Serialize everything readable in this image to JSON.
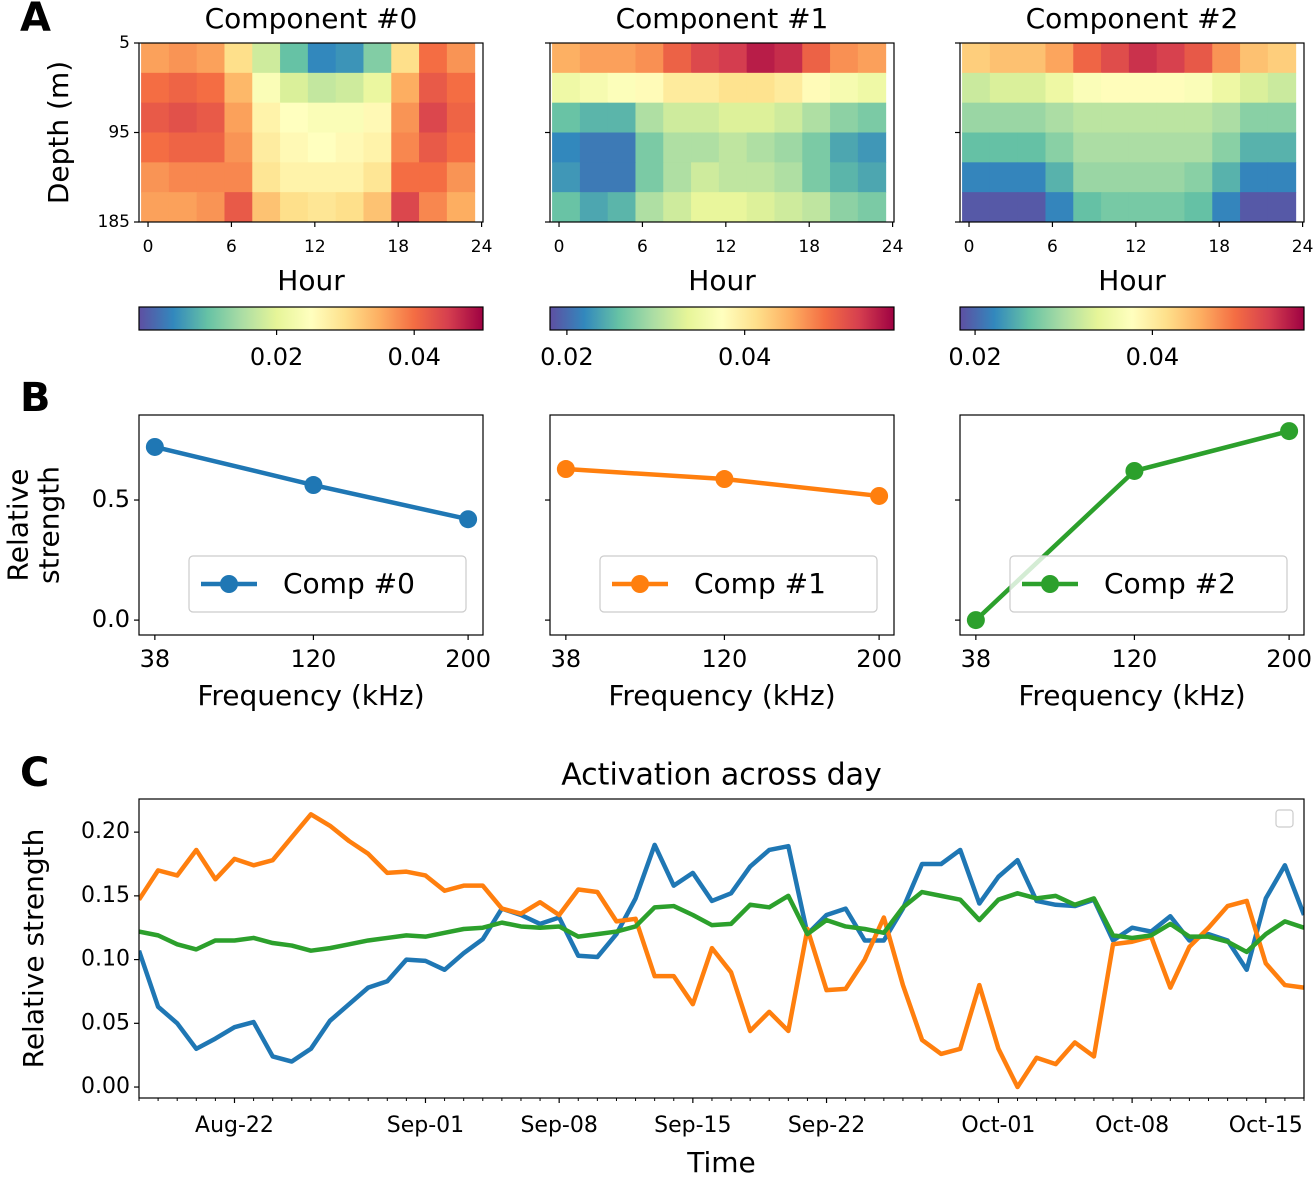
{
  "chart_data": [
    {
      "type": "heatmap",
      "panel": "A",
      "title": "Component #0",
      "xlabel": "Hour",
      "ylabel": [
        "Depth (m)"
      ],
      "x_edges": [
        -0.5,
        1.5,
        3.5,
        5.5,
        7.5,
        9.5,
        11.5,
        13.5,
        15.5,
        17.5,
        19.5,
        21.5,
        23.5
      ],
      "y_edges": [
        5,
        35,
        65,
        95,
        125,
        155,
        185
      ],
      "values": [
        [
          0.036,
          0.037,
          0.036,
          0.03,
          0.018,
          0.01,
          0.005,
          0.006,
          0.012,
          0.03,
          0.04,
          0.037
        ],
        [
          0.04,
          0.041,
          0.04,
          0.034,
          0.024,
          0.019,
          0.017,
          0.018,
          0.021,
          0.035,
          0.042,
          0.04
        ],
        [
          0.042,
          0.043,
          0.042,
          0.036,
          0.027,
          0.025,
          0.024,
          0.024,
          0.026,
          0.037,
          0.044,
          0.041
        ],
        [
          0.04,
          0.041,
          0.041,
          0.037,
          0.028,
          0.026,
          0.025,
          0.026,
          0.027,
          0.038,
          0.042,
          0.04
        ],
        [
          0.037,
          0.038,
          0.038,
          0.038,
          0.029,
          0.027,
          0.027,
          0.027,
          0.029,
          0.04,
          0.04,
          0.037
        ],
        [
          0.036,
          0.036,
          0.037,
          0.042,
          0.033,
          0.03,
          0.029,
          0.03,
          0.033,
          0.044,
          0.038,
          0.035
        ]
      ],
      "xlim": [
        -0.65,
        24.1
      ],
      "ylim": [
        185,
        5
      ],
      "xticks": [
        0,
        6,
        12,
        18,
        24
      ],
      "yticks": [
        5,
        95,
        185
      ],
      "show_ytick_labels": true,
      "colormap": [
        "#5e4fa2",
        "#3288bd",
        "#66c2a5",
        "#abdda4",
        "#e6f598",
        "#ffffbf",
        "#fee08b",
        "#fdae61",
        "#f46d43",
        "#d53e4f",
        "#9e0142"
      ],
      "clim": [
        0.0,
        0.05
      ],
      "cticks": [
        0.02,
        0.04
      ]
    },
    {
      "type": "heatmap",
      "title": "Component #1",
      "xlabel": "Hour",
      "x_edges": [
        -0.5,
        1.5,
        3.5,
        5.5,
        7.5,
        9.5,
        11.5,
        13.5,
        15.5,
        17.5,
        19.5,
        21.5,
        23.5
      ],
      "y_edges": [
        5,
        35,
        65,
        95,
        125,
        155,
        185
      ],
      "values": [
        [
          0.045,
          0.046,
          0.046,
          0.047,
          0.05,
          0.052,
          0.053,
          0.055,
          0.054,
          0.05,
          0.047,
          0.046
        ],
        [
          0.035,
          0.036,
          0.037,
          0.038,
          0.04,
          0.04,
          0.041,
          0.041,
          0.04,
          0.038,
          0.036,
          0.035
        ],
        [
          0.026,
          0.025,
          0.025,
          0.03,
          0.032,
          0.032,
          0.033,
          0.033,
          0.032,
          0.03,
          0.028,
          0.027
        ],
        [
          0.022,
          0.021,
          0.021,
          0.027,
          0.03,
          0.03,
          0.031,
          0.03,
          0.029,
          0.027,
          0.024,
          0.023
        ],
        [
          0.023,
          0.021,
          0.021,
          0.027,
          0.03,
          0.032,
          0.031,
          0.031,
          0.03,
          0.027,
          0.025,
          0.024
        ],
        [
          0.026,
          0.024,
          0.025,
          0.03,
          0.032,
          0.034,
          0.034,
          0.033,
          0.032,
          0.031,
          0.028,
          0.027
        ]
      ],
      "xlim": [
        -0.65,
        24.1
      ],
      "ylim": [
        185,
        5
      ],
      "xticks": [
        0,
        6,
        12,
        18,
        24
      ],
      "yticks": [
        5,
        95,
        185
      ],
      "show_ytick_labels": false,
      "colormap": [
        "#5e4fa2",
        "#3288bd",
        "#66c2a5",
        "#abdda4",
        "#e6f598",
        "#ffffbf",
        "#fee08b",
        "#fdae61",
        "#f46d43",
        "#d53e4f",
        "#9e0142"
      ],
      "clim": [
        0.0181,
        0.0568
      ],
      "cticks": [
        0.02,
        0.04
      ]
    },
    {
      "type": "heatmap",
      "title": "Component #2",
      "xlabel": "Hour",
      "x_edges": [
        -0.5,
        1.5,
        3.5,
        5.5,
        7.5,
        9.5,
        11.5,
        13.5,
        15.5,
        17.5,
        19.5,
        21.5,
        23.5
      ],
      "y_edges": [
        5,
        35,
        65,
        95,
        125,
        155,
        185
      ],
      "values": [
        [
          0.043,
          0.044,
          0.044,
          0.046,
          0.05,
          0.052,
          0.054,
          0.053,
          0.051,
          0.047,
          0.044,
          0.043
        ],
        [
          0.032,
          0.033,
          0.033,
          0.035,
          0.037,
          0.038,
          0.038,
          0.038,
          0.037,
          0.035,
          0.033,
          0.032
        ],
        [
          0.029,
          0.029,
          0.029,
          0.03,
          0.031,
          0.031,
          0.031,
          0.031,
          0.031,
          0.03,
          0.028,
          0.028
        ],
        [
          0.026,
          0.026,
          0.026,
          0.028,
          0.03,
          0.03,
          0.03,
          0.03,
          0.03,
          0.028,
          0.025,
          0.025
        ],
        [
          0.022,
          0.022,
          0.022,
          0.025,
          0.029,
          0.029,
          0.029,
          0.029,
          0.028,
          0.025,
          0.022,
          0.022
        ],
        [
          0.019,
          0.019,
          0.019,
          0.022,
          0.026,
          0.027,
          0.027,
          0.027,
          0.026,
          0.022,
          0.019,
          0.019
        ]
      ],
      "xlim": [
        -0.65,
        24.1
      ],
      "ylim": [
        185,
        5
      ],
      "xticks": [
        0,
        6,
        12,
        18,
        24
      ],
      "yticks": [
        5,
        95,
        185
      ],
      "show_ytick_labels": false,
      "colormap": [
        "#5e4fa2",
        "#3288bd",
        "#66c2a5",
        "#abdda4",
        "#e6f598",
        "#ffffbf",
        "#fee08b",
        "#fdae61",
        "#f46d43",
        "#d53e4f",
        "#9e0142"
      ],
      "clim": [
        0.0183,
        0.0571
      ],
      "cticks": [
        0.02,
        0.04
      ]
    },
    {
      "type": "line",
      "panel": "B",
      "xlabel": "Frequency (kHz)",
      "ylabel": [
        "Relative",
        "strength"
      ],
      "x": [
        38,
        120,
        200
      ],
      "xlim": [
        29.8,
        207.7
      ],
      "xticks": [
        38,
        120,
        200
      ],
      "ylim": [
        -0.062,
        0.854
      ],
      "yticks": [
        {
          "value": 0,
          "label": "0.0"
        },
        0.5
      ],
      "show_ytick_labels": true,
      "markers": true,
      "legend": "lower right",
      "series": [
        {
          "name": "Comp #0",
          "color": "#1f77b4",
          "values": [
            0.721,
            0.5625,
            0.42
          ]
        }
      ]
    },
    {
      "type": "line",
      "xlabel": "Frequency (kHz)",
      "x": [
        38,
        120,
        200
      ],
      "xlim": [
        29.8,
        207.7
      ],
      "xticks": [
        38,
        120,
        200
      ],
      "ylim": [
        -0.062,
        0.854
      ],
      "yticks": [
        {
          "value": 0,
          "label": "0.0"
        },
        0.5
      ],
      "show_ytick_labels": false,
      "markers": true,
      "legend": "lower right",
      "series": [
        {
          "name": "Comp #1",
          "color": "#ff7f0e",
          "values": [
            0.629,
            0.5875,
            0.517
          ]
        }
      ]
    },
    {
      "type": "line",
      "xlabel": "Frequency (kHz)",
      "x": [
        38,
        120,
        200
      ],
      "xlim": [
        29.8,
        207.7
      ],
      "xticks": [
        38,
        120,
        200
      ],
      "ylim": [
        -0.062,
        0.854
      ],
      "yticks": [
        {
          "value": 0,
          "label": "0.0"
        },
        0.5
      ],
      "show_ytick_labels": false,
      "markers": true,
      "legend": "lower right",
      "series": [
        {
          "name": "Comp #2",
          "color": "#2ca02c",
          "values": [
            0.0,
            0.621,
            0.787
          ]
        }
      ]
    },
    {
      "type": "line",
      "panel": "C",
      "title": "Activation across day",
      "xlabel": "Time",
      "ylabel": [
        "Relative strength"
      ],
      "x": [
        "Aug-17",
        "Aug-18",
        "Aug-19",
        "Aug-20",
        "Aug-21",
        "Aug-22",
        "Aug-23",
        "Aug-24",
        "Aug-25",
        "Aug-26",
        "Aug-27",
        "Aug-28",
        "Aug-29",
        "Aug-30",
        "Aug-31",
        "Sep-01",
        "Sep-02",
        "Sep-03",
        "Sep-04",
        "Sep-05",
        "Sep-06",
        "Sep-07",
        "Sep-08",
        "Sep-09",
        "Sep-10",
        "Sep-11",
        "Sep-12",
        "Sep-13",
        "Sep-14",
        "Sep-15",
        "Sep-16",
        "Sep-17",
        "Sep-18",
        "Sep-19",
        "Sep-20",
        "Sep-21",
        "Sep-22",
        "Sep-23",
        "Sep-24",
        "Sep-25",
        "Sep-26",
        "Sep-27",
        "Sep-28",
        "Sep-29",
        "Sep-30",
        "Oct-01",
        "Oct-02",
        "Oct-03",
        "Oct-04",
        "Oct-05",
        "Oct-06",
        "Oct-07",
        "Oct-08",
        "Oct-09",
        "Oct-10",
        "Oct-11",
        "Oct-12",
        "Oct-13",
        "Oct-14",
        "Oct-15",
        "Oct-16",
        "Oct-17"
      ],
      "xlim": [
        "Aug-17",
        "Oct-17"
      ],
      "xticks": [
        "Aug-22",
        "Sep-01",
        "Sep-08",
        "Sep-15",
        "Sep-22",
        "Oct-01",
        "Oct-08",
        "Oct-15"
      ],
      "ylim": [
        -0.0086,
        0.226
      ],
      "yticks": [
        {
          "value": 0,
          "label": "0.00"
        },
        0.05,
        {
          "value": 0.1,
          "label": "0.10"
        },
        0.15,
        {
          "value": 0.2,
          "label": "0.20"
        }
      ],
      "show_ytick_labels": true,
      "markers": false,
      "legend": "upper right",
      "series": [
        {
          "color": "#1f77b4",
          "values": [
            0.107,
            0.063,
            0.05,
            0.03,
            0.038,
            0.047,
            0.051,
            0.024,
            0.02,
            0.03,
            0.052,
            0.065,
            0.078,
            0.083,
            0.1,
            0.099,
            0.092,
            0.105,
            0.116,
            0.14,
            0.135,
            0.128,
            0.133,
            0.103,
            0.102,
            0.12,
            0.148,
            0.19,
            0.158,
            0.168,
            0.146,
            0.152,
            0.173,
            0.186,
            0.189,
            0.12,
            0.135,
            0.14,
            0.115,
            0.115,
            0.14,
            0.175,
            0.175,
            0.186,
            0.144,
            0.165,
            0.178,
            0.146,
            0.143,
            0.142,
            0.147,
            0.115,
            0.125,
            0.122,
            0.134,
            0.115,
            0.12,
            0.115,
            0.092,
            0.148,
            0.174,
            0.135
          ]
        },
        {
          "color": "#ff7f0e",
          "values": [
            0.147,
            0.17,
            0.166,
            0.186,
            0.163,
            0.179,
            0.174,
            0.178,
            0.196,
            0.214,
            0.205,
            0.193,
            0.183,
            0.168,
            0.169,
            0.166,
            0.154,
            0.158,
            0.158,
            0.14,
            0.136,
            0.145,
            0.135,
            0.155,
            0.153,
            0.13,
            0.132,
            0.087,
            0.087,
            0.065,
            0.109,
            0.09,
            0.044,
            0.059,
            0.044,
            0.124,
            0.076,
            0.077,
            0.1,
            0.133,
            0.08,
            0.037,
            0.026,
            0.03,
            0.08,
            0.03,
            0.0,
            0.023,
            0.018,
            0.035,
            0.024,
            0.112,
            0.114,
            0.118,
            0.078,
            0.11,
            0.125,
            0.142,
            0.146,
            0.097,
            0.08,
            0.078
          ]
        },
        {
          "color": "#2ca02c",
          "values": [
            0.122,
            0.119,
            0.112,
            0.108,
            0.115,
            0.115,
            0.117,
            0.113,
            0.111,
            0.107,
            0.109,
            0.112,
            0.115,
            0.117,
            0.119,
            0.118,
            0.121,
            0.124,
            0.125,
            0.129,
            0.126,
            0.125,
            0.126,
            0.118,
            0.12,
            0.122,
            0.126,
            0.141,
            0.142,
            0.135,
            0.127,
            0.128,
            0.143,
            0.141,
            0.15,
            0.12,
            0.131,
            0.126,
            0.124,
            0.121,
            0.141,
            0.153,
            0.15,
            0.147,
            0.131,
            0.147,
            0.152,
            0.148,
            0.15,
            0.143,
            0.148,
            0.119,
            0.117,
            0.119,
            0.128,
            0.118,
            0.118,
            0.114,
            0.106,
            0.12,
            0.13,
            0.125
          ]
        }
      ]
    }
  ]
}
